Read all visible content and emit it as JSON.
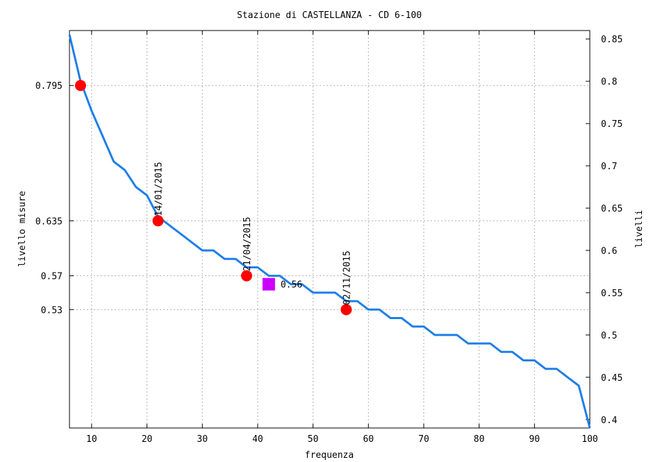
{
  "chart_data": {
    "type": "line",
    "title": "Stazione di CASTELLANZA - CD 6-100",
    "xlabel": "frequenza",
    "ylabel_left": "livello misure",
    "ylabel_right": "livelli",
    "xlim": [
      6,
      100
    ],
    "ylim": [
      0.39,
      0.86
    ],
    "x_ticks": [
      10,
      20,
      30,
      40,
      50,
      60,
      70,
      80,
      90,
      100
    ],
    "x_tick_labels": [
      "10",
      "20",
      "30",
      "40",
      "50",
      "60",
      "70",
      "80",
      "90",
      "100"
    ],
    "right_ticks": [
      0.4,
      0.45,
      0.5,
      0.55,
      0.6,
      0.65,
      0.7,
      0.75,
      0.8,
      0.85
    ],
    "right_tick_labels": [
      "0.4",
      "0.45",
      "0.5",
      "0.55",
      "0.6",
      "0.65",
      "0.7",
      "0.75",
      "0.8",
      "0.85"
    ],
    "left_ticks": [
      0.795,
      0.635,
      0.57,
      0.53
    ],
    "left_tick_labels": [
      "0.795",
      "0.635",
      "0.57",
      "0.53"
    ],
    "grid": true,
    "line_color": "#1e7fe8",
    "curve": {
      "x": [
        6,
        8,
        10,
        12,
        14,
        16,
        18,
        20,
        22,
        24,
        26,
        28,
        30,
        32,
        34,
        36,
        38,
        40,
        42,
        44,
        46,
        48,
        50,
        52,
        54,
        56,
        58,
        60,
        62,
        64,
        66,
        68,
        70,
        72,
        74,
        76,
        78,
        80,
        82,
        84,
        86,
        88,
        90,
        92,
        94,
        96,
        98,
        100
      ],
      "y": [
        0.855,
        0.8,
        0.765,
        0.735,
        0.705,
        0.695,
        0.675,
        0.665,
        0.64,
        0.63,
        0.62,
        0.61,
        0.6,
        0.6,
        0.59,
        0.59,
        0.58,
        0.58,
        0.57,
        0.57,
        0.56,
        0.56,
        0.55,
        0.55,
        0.55,
        0.54,
        0.54,
        0.53,
        0.53,
        0.52,
        0.52,
        0.51,
        0.51,
        0.5,
        0.5,
        0.5,
        0.49,
        0.49,
        0.49,
        0.48,
        0.48,
        0.47,
        0.47,
        0.46,
        0.46,
        0.45,
        0.44,
        0.39
      ]
    },
    "measurements": {
      "color": "#ff0000",
      "points": [
        {
          "x": 8,
          "y": 0.795,
          "label": ""
        },
        {
          "x": 22,
          "y": 0.635,
          "label": "14/01/2015"
        },
        {
          "x": 38,
          "y": 0.57,
          "label": "21/04/2015"
        },
        {
          "x": 56,
          "y": 0.53,
          "label": "02/11/2015"
        }
      ]
    },
    "current": {
      "x": 42,
      "y": 0.56,
      "label": "0.56",
      "color": "#cc00ff"
    }
  }
}
